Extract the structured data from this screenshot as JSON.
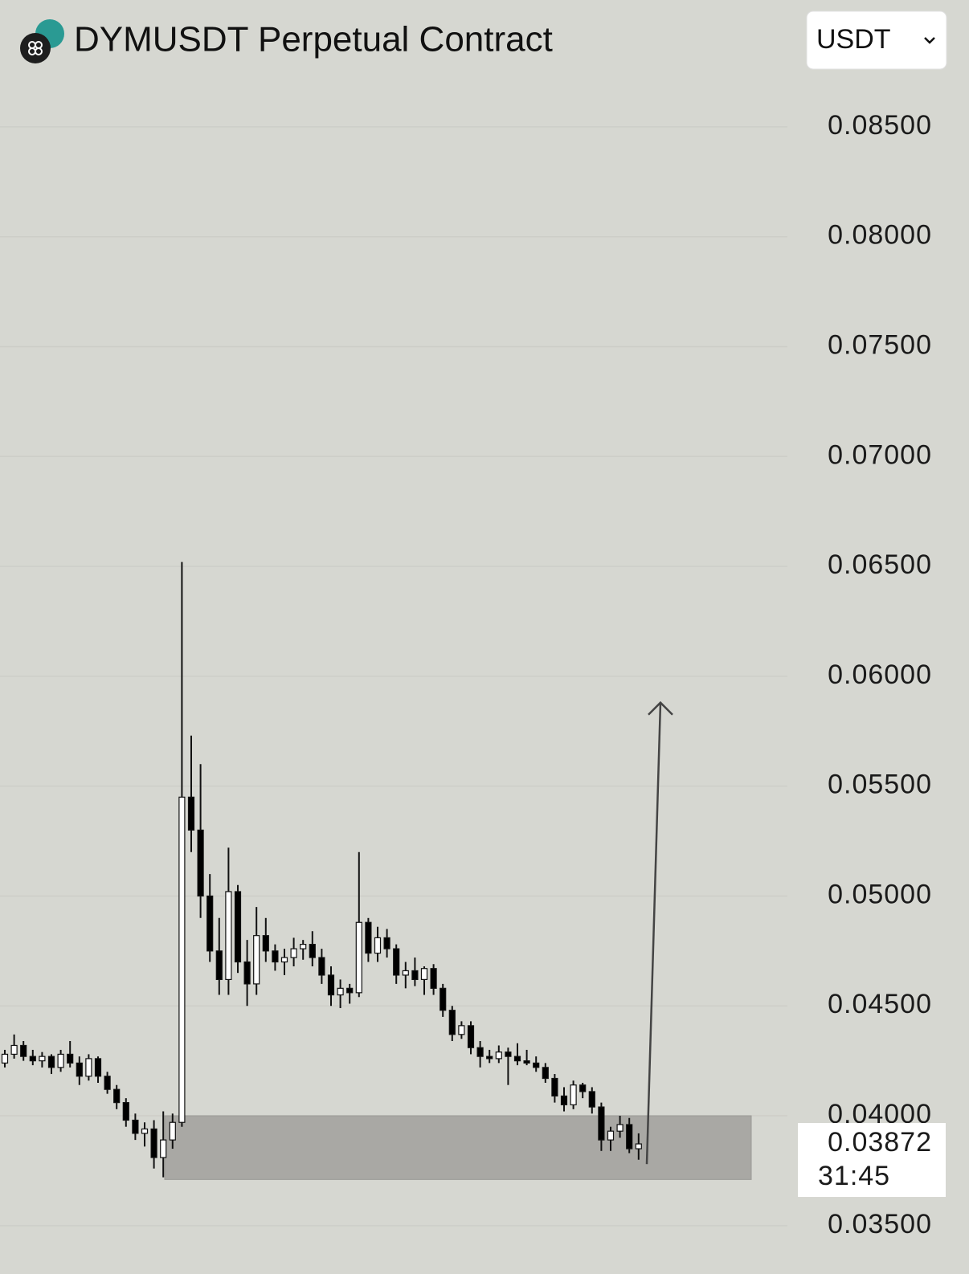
{
  "chart_data": {
    "type": "candlestick",
    "title": "DYMUSDT Perpetual Contract",
    "currency": "USDT",
    "ylim": [
      0.0328,
      0.0873
    ],
    "yticks": [
      {
        "value": 0.035,
        "label": "0.03500"
      },
      {
        "value": 0.04,
        "label": "0.04000"
      },
      {
        "value": 0.045,
        "label": "0.04500"
      },
      {
        "value": 0.05,
        "label": "0.05000"
      },
      {
        "value": 0.055,
        "label": "0.05500"
      },
      {
        "value": 0.06,
        "label": "0.06000"
      },
      {
        "value": 0.065,
        "label": "0.06500"
      },
      {
        "value": 0.07,
        "label": "0.07000"
      },
      {
        "value": 0.075,
        "label": "0.07500"
      },
      {
        "value": 0.08,
        "label": "0.08000"
      },
      {
        "value": 0.085,
        "label": "0.08500"
      }
    ],
    "grid": true,
    "up_color": "#ffffff",
    "down_color": "#000000",
    "open": [
      0.0424,
      0.0428,
      0.0432,
      0.0427,
      0.0425,
      0.0427,
      0.0422,
      0.0428,
      0.0424,
      0.0418,
      0.0426,
      0.0418,
      0.0412,
      0.0406,
      0.0398,
      0.0392,
      0.0394,
      0.0381,
      0.0389,
      0.0397,
      0.0545,
      0.053,
      0.05,
      0.0475,
      0.0462,
      0.0502,
      0.047,
      0.046,
      0.0482,
      0.0475,
      0.047,
      0.0472,
      0.0476,
      0.0478,
      0.0472,
      0.0464,
      0.0455,
      0.0458,
      0.0456,
      0.0488,
      0.0474,
      0.0481,
      0.0476,
      0.0464,
      0.0466,
      0.0462,
      0.0467,
      0.0458,
      0.0448,
      0.0437,
      0.0441,
      0.0431,
      0.0427,
      0.0426,
      0.0429,
      0.0427,
      0.0425,
      0.0424,
      0.0422,
      0.0417,
      0.0409,
      0.0405,
      0.0414,
      0.0411,
      0.0404,
      0.0389,
      0.0393,
      0.0396,
      0.0385
    ],
    "high": [
      0.043,
      0.0437,
      0.0434,
      0.043,
      0.0429,
      0.0428,
      0.043,
      0.0434,
      0.0427,
      0.0428,
      0.0427,
      0.042,
      0.0414,
      0.0408,
      0.0401,
      0.0397,
      0.0398,
      0.0402,
      0.0401,
      0.0652,
      0.0573,
      0.056,
      0.051,
      0.049,
      0.0522,
      0.0505,
      0.048,
      0.0495,
      0.049,
      0.0478,
      0.0476,
      0.0481,
      0.048,
      0.0484,
      0.0476,
      0.0468,
      0.0462,
      0.046,
      0.052,
      0.049,
      0.0486,
      0.0485,
      0.0478,
      0.047,
      0.0472,
      0.0468,
      0.0469,
      0.046,
      0.045,
      0.0443,
      0.0443,
      0.0434,
      0.043,
      0.0432,
      0.0431,
      0.0433,
      0.043,
      0.0427,
      0.0424,
      0.0419,
      0.0413,
      0.0416,
      0.0415,
      0.0413,
      0.0406,
      0.0395,
      0.04,
      0.0399,
      0.0392
    ],
    "low": [
      0.0422,
      0.0426,
      0.0425,
      0.0423,
      0.0422,
      0.0419,
      0.042,
      0.0422,
      0.0414,
      0.0416,
      0.0415,
      0.041,
      0.0403,
      0.0395,
      0.0389,
      0.0386,
      0.0376,
      0.0372,
      0.0385,
      0.0395,
      0.052,
      0.049,
      0.047,
      0.0455,
      0.0455,
      0.0465,
      0.045,
      0.0455,
      0.047,
      0.0466,
      0.0464,
      0.0468,
      0.0471,
      0.0468,
      0.046,
      0.045,
      0.0449,
      0.0451,
      0.0454,
      0.047,
      0.047,
      0.0472,
      0.046,
      0.0458,
      0.0459,
      0.0455,
      0.0455,
      0.0445,
      0.0434,
      0.0435,
      0.0428,
      0.0422,
      0.0424,
      0.0424,
      0.0414,
      0.0423,
      0.0423,
      0.042,
      0.0415,
      0.0406,
      0.0402,
      0.0403,
      0.0408,
      0.0401,
      0.0384,
      0.0384,
      0.039,
      0.0383,
      0.038
    ],
    "close": [
      0.0428,
      0.0432,
      0.0427,
      0.0425,
      0.0427,
      0.0422,
      0.0428,
      0.0424,
      0.0418,
      0.0426,
      0.0418,
      0.0412,
      0.0406,
      0.0398,
      0.0392,
      0.0394,
      0.0381,
      0.0389,
      0.0397,
      0.0545,
      0.053,
      0.05,
      0.0475,
      0.0462,
      0.0502,
      0.047,
      0.046,
      0.0482,
      0.0475,
      0.047,
      0.0472,
      0.0476,
      0.0478,
      0.0472,
      0.0464,
      0.0455,
      0.0458,
      0.0456,
      0.0488,
      0.0474,
      0.0481,
      0.0476,
      0.0464,
      0.0466,
      0.0462,
      0.0467,
      0.0458,
      0.0448,
      0.0437,
      0.0441,
      0.0431,
      0.0427,
      0.0426,
      0.0429,
      0.0427,
      0.0425,
      0.0424,
      0.0422,
      0.0417,
      0.0409,
      0.0405,
      0.0414,
      0.0411,
      0.0404,
      0.0389,
      0.0393,
      0.0396,
      0.0385,
      0.03872
    ],
    "zone": [
      0.0371,
      0.04
    ],
    "zone_color": "#a9a8a4",
    "arrow": [
      0.0378,
      0.0588
    ],
    "last_price": 0.03872,
    "countdown": "31:45"
  }
}
